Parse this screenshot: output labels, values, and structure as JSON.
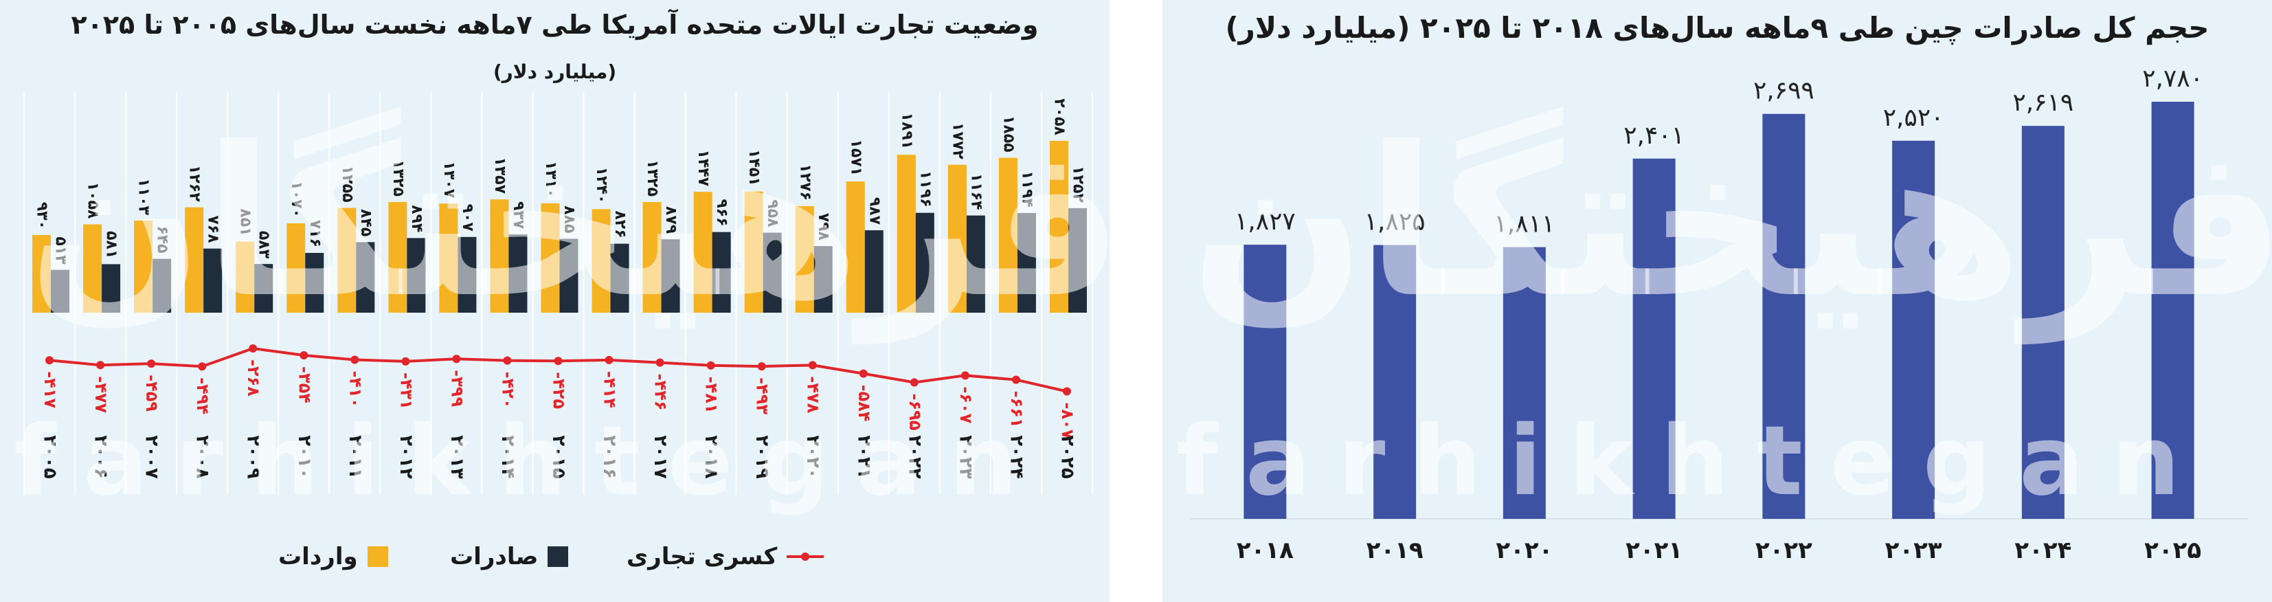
{
  "chart_data": [
    {
      "type": "bar",
      "title": "وضعیت تجارت ایالات متحده آمریکا طی ۷ماهه نخست سال‌های ۲۰۰۵ تا ۲۰۲۵",
      "subtitle": "(میلیارد دلار)",
      "categories": [
        "۲۰۰۵",
        "۲۰۰۶",
        "۲۰۰۷",
        "۲۰۰۸",
        "۲۰۰۹",
        "۲۰۱۰",
        "۲۰۱۱",
        "۲۰۱۲",
        "۲۰۱۳",
        "۲۰۱۴",
        "۲۰۱۵",
        "۲۰۱۶",
        "۲۰۱۷",
        "۲۰۱۸",
        "۲۰۱۹",
        "۲۰۲۰",
        "۲۰۲۱",
        "۲۰۲۲",
        "۲۰۲۳",
        "۲۰۲۴",
        "۲۰۲۵"
      ],
      "series": [
        {
          "name": "واردات",
          "color": "#f5b223",
          "kind": "bar",
          "values": [
            930,
            1058,
            1103,
            1262,
            851,
            1070,
            1255,
            1325,
            1307,
            1357,
            1310,
            1240,
            1325,
            1447,
            1451,
            1276,
            1571,
            1891,
            1772,
            1855,
            2058
          ],
          "labels": [
            "۹۳۰",
            "۱۰۵۸",
            "۱۱۰۳",
            "۱۲۶۲",
            "۸۵۱",
            "۱۰۷۰",
            "۱۲۵۵",
            "۱۳۲۵",
            "۱۳۰۷",
            "۱۳۵۷",
            "۱۳۱۰",
            "۱۲۴۰",
            "۱۳۲۵",
            "۱۴۴۷",
            "۱۴۵۱",
            "۱۲۷۶",
            "۱۵۷۱",
            "۱۸۹۱",
            "۱۷۷۲",
            "۱۸۵۵",
            "۲۰۵۸"
          ]
        },
        {
          "name": "صادرات",
          "color": "#1f2d3d",
          "kind": "bar",
          "values": [
            513,
            581,
            645,
            768,
            583,
            716,
            845,
            894,
            907,
            937,
            885,
            826,
            879,
            966,
            958,
            798,
            987,
            1196,
            1164,
            1194,
            1252
          ],
          "labels": [
            "۵۱۳",
            "۵۸۱",
            "۶۴۵",
            "۷۶۸",
            "۵۸۳",
            "۷۱۶",
            "۸۴۵",
            "۸۹۴",
            "۹۰۷",
            "۹۳۷",
            "۸۸۵",
            "۸۲۶",
            "۸۷۹",
            "۹۶۶",
            "۹۵۸",
            "۷۹۸",
            "۹۸۷",
            "۱۱۹۶",
            "۱۱۶۴",
            "۱۱۹۴",
            "۱۲۵۲"
          ]
        },
        {
          "name": "کسری تجاری",
          "color": "#e0262b",
          "kind": "line",
          "values": [
            -417,
            -477,
            -459,
            -494,
            -268,
            -354,
            -410,
            -431,
            -399,
            -420,
            -425,
            -414,
            -446,
            -481,
            -493,
            -478,
            -584,
            -695,
            -607,
            -661,
            -807
          ],
          "labels": [
            "-۴۱۷",
            "-۴۷۷",
            "-۴۵۹",
            "-۴۹۴",
            "-۲۶۸",
            "-۳۵۴",
            "-۴۱۰",
            "-۴۳۱",
            "-۳۹۹",
            "-۴۲۰",
            "-۴۲۵",
            "-۴۱۴",
            "-۴۴۶",
            "-۴۸۱",
            "-۴۹۳",
            "-۴۷۸",
            "-۵۸۴",
            "-۶۹۵",
            "-۶۰۷",
            "-۶۶۱",
            "-۸۰۷"
          ]
        }
      ],
      "legend": "bottom",
      "grid": false
    },
    {
      "type": "bar",
      "title": "حجم کل صادرات چین طی ۹ماهه سال‌های ۲۰۱۸ تا ۲۰۲۵ (میلیارد دلار)",
      "categories": [
        "۲۰۱۸",
        "۲۰۱۹",
        "۲۰۲۰",
        "۲۰۲۱",
        "۲۰۲۲",
        "۲۰۲۳",
        "۲۰۲۴",
        "۲۰۲۵"
      ],
      "values": [
        1827,
        1825,
        1811,
        2401,
        2699,
        2520,
        2619,
        2780
      ],
      "labels": [
        "۱,۸۲۷",
        "۱,۸۲۵",
        "۱,۸۱۱",
        "۲,۴۰۱",
        "۲,۶۹۹",
        "۲,۵۲۰",
        "۲,۶۱۹",
        "۲,۷۸۰"
      ],
      "color": "#3e52a4",
      "ylim": [
        0,
        3000
      ],
      "grid": false
    }
  ],
  "legend_items": {
    "imports": "واردات",
    "exports": "صادرات",
    "deficit": "کسری تجاری"
  },
  "watermark": {
    "persian": "فرهیختگان",
    "latin": "farhikhtegan"
  },
  "colors": {
    "panel_bg": "#e8f3f9",
    "imports": "#f5b223",
    "exports": "#1f2d3d",
    "deficit": "#e0262b",
    "china_bar": "#3e52a4"
  }
}
